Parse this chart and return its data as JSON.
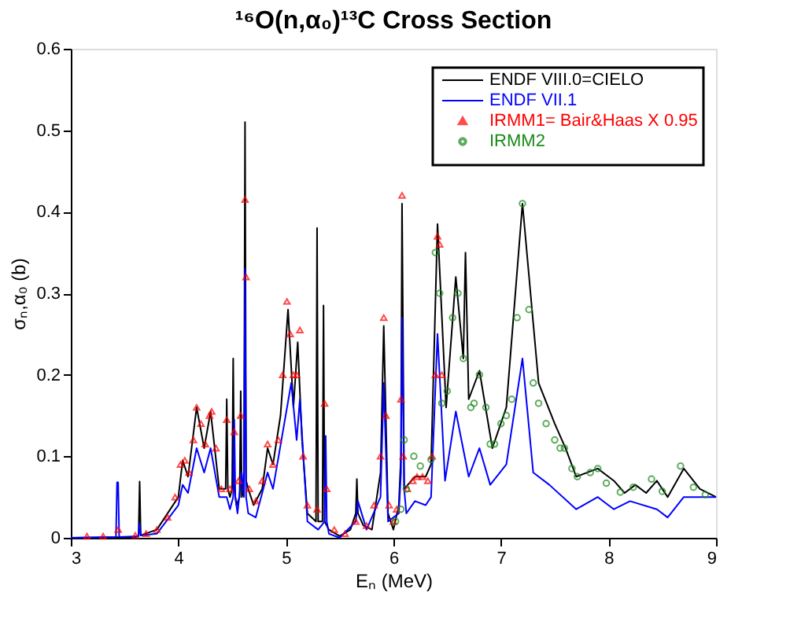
{
  "chart_data": {
    "type": "line",
    "title": "¹⁶O(n,α₀)¹³C Cross Section",
    "xlabel": "Eₙ (MeV)",
    "ylabel": "σₙ,α₀ (b)",
    "xlim": [
      3,
      9
    ],
    "xticks": [
      3,
      4,
      5,
      6,
      7,
      8,
      9
    ],
    "ylim": [
      0,
      0.6
    ],
    "yticks": [
      0,
      0.1,
      0.2,
      0.3,
      0.4,
      0.5,
      0.6
    ],
    "grid": false,
    "legend": "top right",
    "series": [
      {
        "name": "ENDF VIII.0=CIELO",
        "color": "#000000",
        "x": [
          3.0,
          3.6,
          3.63,
          3.64,
          3.65,
          3.8,
          4.0,
          4.04,
          4.09,
          4.17,
          4.24,
          4.3,
          4.38,
          4.44,
          4.45,
          4.46,
          4.48,
          4.5,
          4.51,
          4.52,
          4.54,
          4.57,
          4.58,
          4.59,
          4.61,
          4.62,
          4.63,
          4.65,
          4.7,
          4.78,
          4.83,
          4.88,
          4.95,
          5.02,
          5.07,
          5.11,
          5.15,
          5.2,
          5.28,
          5.29,
          5.3,
          5.32,
          5.34,
          5.35,
          5.36,
          5.4,
          5.5,
          5.6,
          5.65,
          5.66,
          5.67,
          5.72,
          5.8,
          5.88,
          5.91,
          5.95,
          6.0,
          6.05,
          6.07,
          6.08,
          6.1,
          6.2,
          6.3,
          6.35,
          6.41,
          6.49,
          6.58,
          6.65,
          6.67,
          6.7,
          6.8,
          6.92,
          7.05,
          7.2,
          7.35,
          7.5,
          7.6,
          7.7,
          7.8,
          7.9,
          8.05,
          8.15,
          8.25,
          8.35,
          8.45,
          8.55,
          8.7,
          8.85,
          9.0
        ],
        "values": [
          0,
          0.001,
          0.002,
          0.069,
          0.003,
          0.01,
          0.05,
          0.095,
          0.075,
          0.16,
          0.11,
          0.155,
          0.06,
          0.06,
          0.17,
          0.06,
          0.05,
          0.06,
          0.22,
          0.06,
          0.04,
          0.05,
          0.18,
          0.05,
          0.06,
          0.51,
          0.07,
          0.06,
          0.04,
          0.06,
          0.11,
          0.09,
          0.15,
          0.28,
          0.16,
          0.24,
          0.12,
          0.03,
          0.02,
          0.38,
          0.02,
          0.02,
          0.02,
          0.285,
          0.02,
          0.01,
          0.002,
          0.01,
          0.03,
          0.072,
          0.03,
          0.015,
          0.01,
          0.08,
          0.26,
          0.03,
          0.01,
          0.04,
          0.1,
          0.41,
          0.06,
          0.075,
          0.075,
          0.09,
          0.385,
          0.16,
          0.32,
          0.22,
          0.35,
          0.17,
          0.205,
          0.11,
          0.16,
          0.41,
          0.19,
          0.14,
          0.11,
          0.075,
          0.08,
          0.085,
          0.07,
          0.055,
          0.065,
          0.055,
          0.07,
          0.05,
          0.085,
          0.06,
          0.05
        ]
      },
      {
        "name": "ENDF VII.1",
        "color": "#0000ff",
        "x": [
          3.0,
          3.42,
          3.43,
          3.44,
          3.45,
          3.63,
          3.64,
          3.65,
          3.8,
          4.0,
          4.04,
          4.09,
          4.17,
          4.24,
          4.3,
          4.38,
          4.45,
          4.48,
          4.51,
          4.52,
          4.53,
          4.55,
          4.59,
          4.61,
          4.62,
          4.63,
          4.65,
          4.72,
          4.83,
          4.88,
          5.05,
          5.1,
          5.13,
          5.2,
          5.3,
          5.36,
          5.37,
          5.38,
          5.4,
          5.5,
          5.65,
          5.67,
          5.75,
          5.88,
          5.91,
          5.95,
          6.05,
          6.07,
          6.08,
          6.1,
          6.12,
          6.2,
          6.3,
          6.35,
          6.41,
          6.48,
          6.58,
          6.7,
          6.8,
          6.9,
          7.05,
          7.2,
          7.3,
          7.45,
          7.7,
          7.9,
          8.05,
          8.2,
          8.45,
          8.55,
          8.7,
          9.0
        ],
        "values": [
          0,
          0.001,
          0.068,
          0.068,
          0.001,
          0.002,
          0.018,
          0.003,
          0.005,
          0.04,
          0.065,
          0.055,
          0.11,
          0.08,
          0.11,
          0.05,
          0.05,
          0.035,
          0.05,
          0.145,
          0.05,
          0.03,
          0.08,
          0.05,
          0.33,
          0.05,
          0.03,
          0.025,
          0.08,
          0.06,
          0.19,
          0.12,
          0.17,
          0.02,
          0.01,
          0.02,
          0.125,
          0.02,
          0.005,
          0,
          0.02,
          0.045,
          0.01,
          0.05,
          0.19,
          0.02,
          0.03,
          0.08,
          0.27,
          0.06,
          0.03,
          0.045,
          0.04,
          0.05,
          0.25,
          0.07,
          0.155,
          0.075,
          0.11,
          0.065,
          0.09,
          0.22,
          0.08,
          0.065,
          0.035,
          0.05,
          0.035,
          0.045,
          0.035,
          0.025,
          0.05,
          0.05
        ]
      },
      {
        "name": "IRMM1= Bair&Haas X 0.95",
        "type": "scatter",
        "color": "#ff0000",
        "marker": "triangle",
        "x": [
          3.15,
          3.3,
          3.44,
          3.6,
          3.7,
          3.8,
          3.9,
          3.97,
          4.02,
          4.06,
          4.1,
          4.14,
          4.17,
          4.21,
          4.25,
          4.29,
          4.31,
          4.35,
          4.4,
          4.45,
          4.48,
          4.52,
          4.56,
          4.58,
          4.62,
          4.63,
          4.66,
          4.72,
          4.78,
          4.83,
          4.88,
          4.93,
          4.97,
          5.01,
          5.04,
          5.07,
          5.1,
          5.13,
          5.16,
          5.2,
          5.29,
          5.36,
          5.38,
          5.45,
          5.55,
          5.65,
          5.75,
          5.82,
          5.88,
          5.91,
          5.93,
          5.96,
          6.0,
          6.03,
          6.07,
          6.08,
          6.09,
          6.13,
          6.18,
          6.22,
          6.27,
          6.32,
          6.36,
          6.39,
          6.41,
          6.43,
          6.45
        ],
        "values": [
          0.002,
          0.002,
          0.01,
          0.003,
          0.005,
          0.01,
          0.025,
          0.05,
          0.09,
          0.095,
          0.08,
          0.12,
          0.16,
          0.14,
          0.115,
          0.15,
          0.155,
          0.11,
          0.06,
          0.145,
          0.06,
          0.13,
          0.07,
          0.15,
          0.415,
          0.32,
          0.06,
          0.045,
          0.07,
          0.115,
          0.09,
          0.12,
          0.2,
          0.29,
          0.25,
          0.2,
          0.2,
          0.255,
          0.1,
          0.04,
          0.035,
          0.165,
          0.06,
          0.01,
          0.005,
          0.02,
          0.015,
          0.04,
          0.1,
          0.27,
          0.15,
          0.04,
          0.02,
          0.035,
          0.17,
          0.42,
          0.1,
          0.06,
          0.07,
          0.075,
          0.075,
          0.07,
          0.1,
          0.2,
          0.37,
          0.36,
          0.2
        ]
      },
      {
        "name": "IRMM2",
        "type": "scatter",
        "color": "#1a8a1a",
        "marker": "circle",
        "x": [
          6.02,
          6.07,
          6.1,
          6.12,
          6.19,
          6.25,
          6.35,
          6.39,
          6.43,
          6.45,
          6.5,
          6.55,
          6.6,
          6.65,
          6.72,
          6.75,
          6.8,
          6.86,
          6.9,
          6.94,
          7.0,
          7.05,
          7.1,
          7.15,
          7.2,
          7.26,
          7.3,
          7.35,
          7.42,
          7.5,
          7.55,
          7.59,
          7.66,
          7.71,
          7.83,
          7.9,
          7.98,
          8.11,
          8.23,
          8.4,
          8.5,
          8.67,
          8.79,
          8.9
        ],
        "values": [
          0.02,
          0.035,
          0.12,
          0.06,
          0.1,
          0.088,
          0.096,
          0.35,
          0.3,
          0.165,
          0.18,
          0.27,
          0.3,
          0.22,
          0.16,
          0.165,
          0.2,
          0.16,
          0.115,
          0.115,
          0.14,
          0.15,
          0.17,
          0.27,
          0.41,
          0.28,
          0.19,
          0.165,
          0.14,
          0.12,
          0.11,
          0.11,
          0.085,
          0.075,
          0.08,
          0.085,
          0.067,
          0.056,
          0.062,
          0.072,
          0.057,
          0.088,
          0.062,
          0.053
        ]
      }
    ]
  }
}
